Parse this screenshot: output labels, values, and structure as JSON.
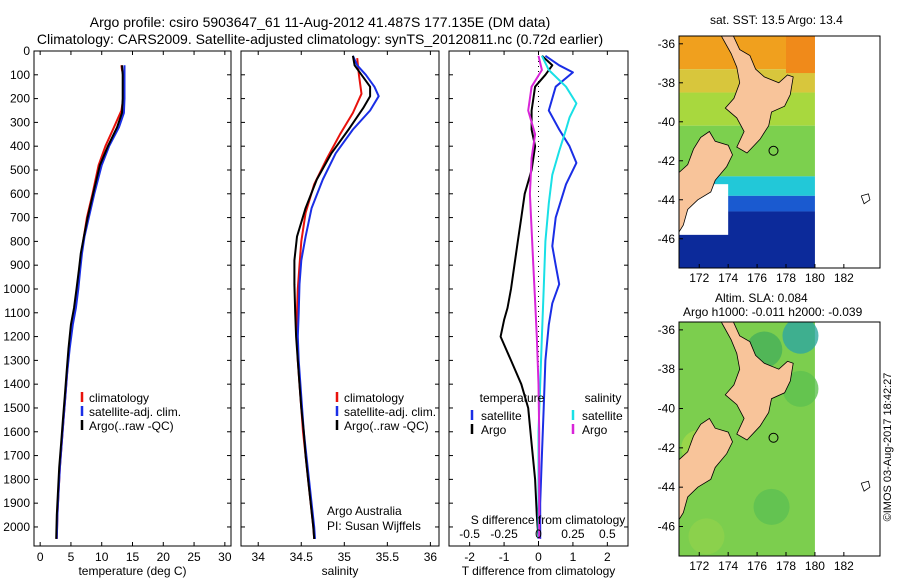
{
  "title_line1": "Argo profile: csiro 5903647_61 11-Aug-2012 41.487S 177.135E (DM data)",
  "title_line2": "Climatology: CARS2009. Satellite-adjusted climatology: synTS_20120811.nc (0.72d earlier)",
  "colors": {
    "clim": "#e8120c",
    "sat": "#1a2ee6",
    "argo": "#000000",
    "sat_cyan": "#19e0e6",
    "argo_magenta": "#d824d8"
  },
  "chart_data": [
    {
      "type": "line",
      "xlabel": "temperature (deg C)",
      "ylabel": "",
      "xlim": [
        -1,
        31
      ],
      "ylim": [
        2080,
        0
      ],
      "xticks": [
        0,
        5,
        10,
        15,
        20,
        25,
        30
      ],
      "yticks": [
        0,
        100,
        200,
        300,
        400,
        500,
        600,
        700,
        800,
        900,
        1000,
        1100,
        1200,
        1300,
        1400,
        1500,
        1600,
        1700,
        1800,
        1900,
        2000
      ],
      "legend": [
        "climatology",
        "satellite-adj. clim.",
        "Argo(..raw -QC)"
      ],
      "series": [
        {
          "name": "climatology",
          "points": [
            [
              13.2,
              60
            ],
            [
              13.3,
              80
            ],
            [
              13.5,
              100
            ],
            [
              13.5,
              200
            ],
            [
              13.2,
              250
            ],
            [
              12,
              320
            ],
            [
              10.6,
              400
            ],
            [
              9.5,
              480
            ],
            [
              8.5,
              600
            ],
            [
              7.6,
              700
            ],
            [
              7.1,
              780
            ],
            [
              6.7,
              850
            ],
            [
              6.4,
              920
            ],
            [
              6.1,
              1000
            ],
            [
              5.7,
              1080
            ],
            [
              5.2,
              1150
            ],
            [
              4.7,
              1250
            ],
            [
              4.4,
              1350
            ],
            [
              4.1,
              1450
            ],
            [
              3.8,
              1550
            ],
            [
              3.5,
              1650
            ],
            [
              3.2,
              1750
            ],
            [
              3,
              1850
            ],
            [
              2.8,
              1950
            ],
            [
              2.7,
              2050
            ]
          ]
        },
        {
          "name": "satellite-adj. clim.",
          "points": [
            [
              13.7,
              60
            ],
            [
              13.7,
              100
            ],
            [
              13.7,
              200
            ],
            [
              13.6,
              260
            ],
            [
              12.8,
              320
            ],
            [
              11.2,
              400
            ],
            [
              10,
              480
            ],
            [
              8.8,
              600
            ],
            [
              7.9,
              700
            ],
            [
              7.2,
              780
            ],
            [
              6.8,
              850
            ],
            [
              6.5,
              920
            ],
            [
              6.2,
              1000
            ],
            [
              5.8,
              1080
            ],
            [
              5.3,
              1150
            ],
            [
              4.8,
              1250
            ],
            [
              4.4,
              1350
            ],
            [
              4.1,
              1450
            ],
            [
              3.8,
              1550
            ],
            [
              3.5,
              1650
            ],
            [
              3.2,
              1750
            ],
            [
              3,
              1850
            ],
            [
              2.8,
              1950
            ],
            [
              2.7,
              2050
            ]
          ]
        },
        {
          "name": "Argo(..raw -QC)",
          "points": [
            [
              13.3,
              60
            ],
            [
              13.4,
              100
            ],
            [
              13.4,
              200
            ],
            [
              13.3,
              260
            ],
            [
              12.5,
              320
            ],
            [
              11,
              400
            ],
            [
              9.7,
              480
            ],
            [
              8.6,
              600
            ],
            [
              7.7,
              700
            ],
            [
              7.1,
              780
            ],
            [
              6.6,
              850
            ],
            [
              6.3,
              920
            ],
            [
              5.9,
              1000
            ],
            [
              5.5,
              1080
            ],
            [
              5,
              1150
            ],
            [
              4.6,
              1250
            ],
            [
              4.3,
              1350
            ],
            [
              4,
              1450
            ],
            [
              3.7,
              1550
            ],
            [
              3.4,
              1650
            ],
            [
              3.1,
              1750
            ],
            [
              2.9,
              1850
            ],
            [
              2.7,
              1950
            ],
            [
              2.6,
              2050
            ]
          ]
        }
      ]
    },
    {
      "type": "line",
      "xlabel": "salinity",
      "xlim": [
        33.8,
        36.1
      ],
      "ylim": [
        2080,
        0
      ],
      "xticks": [
        34,
        34.5,
        35,
        35.5,
        36
      ],
      "legend": [
        "climatology",
        "satellite-adj. clim.",
        "Argo(..raw -QC)"
      ],
      "annotations": [
        "Argo Australia",
        "PI: Susan Wijffels"
      ],
      "series": [
        {
          "name": "climatology",
          "points": [
            [
              35.15,
              30
            ],
            [
              35.17,
              100
            ],
            [
              35.2,
              180
            ],
            [
              35.1,
              260
            ],
            [
              34.95,
              350
            ],
            [
              34.8,
              450
            ],
            [
              34.65,
              560
            ],
            [
              34.55,
              680
            ],
            [
              34.5,
              800
            ],
            [
              34.48,
              900
            ],
            [
              34.46,
              1000
            ],
            [
              34.45,
              1100
            ],
            [
              34.45,
              1200
            ],
            [
              34.46,
              1300
            ],
            [
              34.48,
              1400
            ],
            [
              34.5,
              1500
            ],
            [
              34.52,
              1600
            ],
            [
              34.55,
              1700
            ],
            [
              34.58,
              1800
            ],
            [
              34.61,
              1900
            ],
            [
              34.64,
              2000
            ],
            [
              34.65,
              2050
            ]
          ]
        },
        {
          "name": "satellite-adj. clim.",
          "points": [
            [
              35.1,
              20
            ],
            [
              35.15,
              60
            ],
            [
              35.25,
              100
            ],
            [
              35.35,
              150
            ],
            [
              35.4,
              190
            ],
            [
              35.3,
              250
            ],
            [
              35.1,
              330
            ],
            [
              34.9,
              430
            ],
            [
              34.75,
              540
            ],
            [
              34.62,
              660
            ],
            [
              34.55,
              780
            ],
            [
              34.5,
              880
            ],
            [
              34.48,
              980
            ],
            [
              34.47,
              1100
            ],
            [
              34.46,
              1200
            ],
            [
              34.47,
              1300
            ],
            [
              34.49,
              1400
            ],
            [
              34.51,
              1500
            ],
            [
              34.53,
              1600
            ],
            [
              34.56,
              1700
            ],
            [
              34.59,
              1800
            ],
            [
              34.62,
              1900
            ],
            [
              34.65,
              2000
            ],
            [
              34.66,
              2050
            ]
          ]
        },
        {
          "name": "Argo(..raw -QC)",
          "points": [
            [
              35.1,
              20
            ],
            [
              35.12,
              60
            ],
            [
              35.2,
              100
            ],
            [
              35.3,
              150
            ],
            [
              35.3,
              190
            ],
            [
              35.22,
              240
            ],
            [
              35.05,
              330
            ],
            [
              34.85,
              430
            ],
            [
              34.68,
              540
            ],
            [
              34.55,
              660
            ],
            [
              34.45,
              780
            ],
            [
              34.42,
              880
            ],
            [
              34.42,
              980
            ],
            [
              34.43,
              1100
            ],
            [
              34.44,
              1200
            ],
            [
              34.46,
              1300
            ],
            [
              34.48,
              1400
            ],
            [
              34.5,
              1500
            ],
            [
              34.53,
              1600
            ],
            [
              34.55,
              1700
            ],
            [
              34.58,
              1800
            ],
            [
              34.61,
              1900
            ],
            [
              34.64,
              2000
            ],
            [
              34.65,
              2050
            ]
          ]
        }
      ]
    },
    {
      "type": "line",
      "xlabel": "T difference from climatology",
      "top_xlabel": "S difference from climatology",
      "xlim": [
        -2.6,
        2.6
      ],
      "ylim": [
        2080,
        0
      ],
      "xticks": [
        -2,
        -1,
        0,
        1,
        2
      ],
      "top_xtick_labels": [
        "-0.5",
        "-0.25",
        "0",
        "0.25",
        "0.5"
      ],
      "top_xtick_positions": [
        -2,
        -1,
        0,
        1,
        2
      ],
      "legend_headers": [
        "temperature",
        "salinity"
      ],
      "legend": [
        "satellite",
        "Argo",
        "satellite",
        "Argo"
      ],
      "series": [
        {
          "name": "satellite",
          "quantity": "temperature",
          "points": [
            [
              0.2,
              20
            ],
            [
              0.6,
              60
            ],
            [
              1,
              90
            ],
            [
              0.5,
              150
            ],
            [
              0.3,
              250
            ],
            [
              0.6,
              330
            ],
            [
              0.9,
              400
            ],
            [
              1.1,
              470
            ],
            [
              0.8,
              560
            ],
            [
              0.5,
              700
            ],
            [
              0.4,
              820
            ],
            [
              0.5,
              900
            ],
            [
              0.6,
              980
            ],
            [
              0.4,
              1060
            ],
            [
              0.3,
              1150
            ],
            [
              0.2,
              1300
            ],
            [
              0.15,
              1500
            ],
            [
              0.1,
              1700
            ],
            [
              0.05,
              1900
            ],
            [
              0.05,
              2050
            ]
          ]
        },
        {
          "name": "Argo",
          "quantity": "temperature",
          "points": [
            [
              0.1,
              20
            ],
            [
              0.4,
              60
            ],
            [
              0.2,
              100
            ],
            [
              -0.1,
              150
            ],
            [
              -0.2,
              250
            ],
            [
              -0.2,
              330
            ],
            [
              -0.1,
              400
            ],
            [
              -0.2,
              500
            ],
            [
              -0.4,
              600
            ],
            [
              -0.5,
              700
            ],
            [
              -0.6,
              800
            ],
            [
              -0.7,
              900
            ],
            [
              -0.8,
              1000
            ],
            [
              -0.9,
              1080
            ],
            [
              -1,
              1130
            ],
            [
              -1.1,
              1200
            ],
            [
              -0.8,
              1300
            ],
            [
              -0.5,
              1400
            ],
            [
              -0.3,
              1500
            ],
            [
              -0.2,
              1650
            ],
            [
              -0.1,
              1800
            ],
            [
              -0.05,
              1950
            ],
            [
              0,
              2050
            ]
          ]
        },
        {
          "name": "satellite",
          "quantity": "salinity",
          "points": [
            [
              0.1,
              20
            ],
            [
              0.3,
              80
            ],
            [
              0.8,
              150
            ],
            [
              1.1,
              220
            ],
            [
              0.9,
              280
            ],
            [
              0.8,
              330
            ],
            [
              0.6,
              420
            ],
            [
              0.4,
              520
            ],
            [
              0.3,
              640
            ],
            [
              0.2,
              800
            ],
            [
              0.15,
              1000
            ],
            [
              0.1,
              1200
            ],
            [
              0.05,
              1400
            ],
            [
              0,
              1600
            ],
            [
              0,
              1800
            ],
            [
              0,
              2050
            ]
          ]
        },
        {
          "name": "Argo",
          "quantity": "salinity",
          "points": [
            [
              0,
              20
            ],
            [
              0.1,
              80
            ],
            [
              -0.2,
              150
            ],
            [
              -0.3,
              250
            ],
            [
              -0.1,
              350
            ],
            [
              -0.2,
              450
            ],
            [
              -0.25,
              600
            ],
            [
              -0.2,
              750
            ],
            [
              -0.15,
              900
            ],
            [
              -0.1,
              1050
            ],
            [
              -0.05,
              1200
            ],
            [
              0,
              1400
            ],
            [
              0.02,
              1600
            ],
            [
              0.02,
              1800
            ],
            [
              0.02,
              2050
            ]
          ]
        }
      ]
    },
    {
      "type": "heatmap",
      "title": "sat. SST: 13.5  Argo: 13.4",
      "xlim": [
        170.6,
        184.5
      ],
      "ylim": [
        -47.5,
        -35.6
      ],
      "xticks": [
        172,
        174,
        176,
        178,
        180,
        182
      ],
      "yticks": [
        -36,
        -38,
        -40,
        -42,
        -44,
        -46
      ],
      "xtick_labels": [
        "172",
        "174",
        "176",
        "178",
        "180",
        "182"
      ],
      "ytick_labels": [
        "-36",
        "-38",
        "-40",
        "-42",
        "-44",
        "-46"
      ]
    },
    {
      "type": "heatmap",
      "title": "Altim. SLA: 0.084",
      "subtitle": "Argo h1000: -0.011 h2000: -0.039",
      "xlim": [
        170.6,
        184.5
      ],
      "ylim": [
        -47.5,
        -35.6
      ],
      "xticks": [
        172,
        174,
        176,
        178,
        180,
        182
      ],
      "yticks": [
        -36,
        -38,
        -40,
        -42,
        -44,
        -46
      ],
      "xtick_labels": [
        "172",
        "174",
        "176",
        "178",
        "180",
        "182"
      ],
      "ytick_labels": [
        "-36",
        "-38",
        "-40",
        "-42",
        "-44",
        "-46"
      ]
    }
  ],
  "watermark": "©IMOS 03-Aug-2017 18:42:27"
}
